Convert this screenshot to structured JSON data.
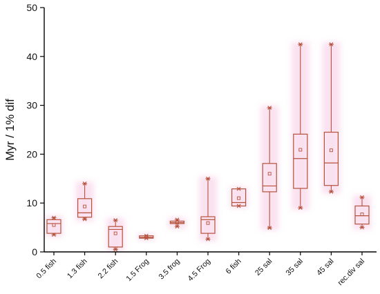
{
  "chart_data": {
    "type": "box",
    "title": "",
    "xlabel": "",
    "ylabel": "Myr / 1% dif",
    "ylim": [
      0,
      50
    ],
    "yticks": [
      0,
      10,
      20,
      30,
      40,
      50
    ],
    "box_color": "#b5513b",
    "glow_color": "#f7c9e3",
    "categories": [
      "0.5 fish",
      "1.3 fish",
      "2.2 fish",
      "1.5 Frog",
      "3.5 frog",
      "4.5 Frog",
      "6 fish",
      "25 sal",
      "35 sal",
      "45 sal",
      "rec.div sal"
    ],
    "boxes": [
      {
        "min": 3.5,
        "q1": 3.8,
        "median": 5.8,
        "q3": 6.6,
        "max": 7.0,
        "mean": 5.5
      },
      {
        "min": 6.7,
        "q1": 7.1,
        "median": 8.0,
        "q3": 10.9,
        "max": 14.0,
        "mean": 9.3
      },
      {
        "min": 0.5,
        "q1": 1.0,
        "median": 4.6,
        "q3": 5.2,
        "max": 6.5,
        "mean": 3.8
      },
      {
        "min": 2.8,
        "q1": 2.8,
        "median": 3.0,
        "q3": 3.3,
        "max": 3.3,
        "mean": 3.1
      },
      {
        "min": 5.2,
        "q1": 5.8,
        "median": 6.0,
        "q3": 6.3,
        "max": 6.6,
        "mean": 6.0
      },
      {
        "min": 2.6,
        "q1": 3.8,
        "median": 6.6,
        "q3": 7.2,
        "max": 15.0,
        "mean": 5.9
      },
      {
        "min": 9.4,
        "q1": 9.4,
        "median": 10.1,
        "q3": 12.9,
        "max": 12.9,
        "mean": 11.0
      },
      {
        "min": 4.9,
        "q1": 12.3,
        "median": 13.5,
        "q3": 18.1,
        "max": 29.5,
        "mean": 16.0
      },
      {
        "min": 9.0,
        "q1": 13.0,
        "median": 19.1,
        "q3": 24.1,
        "max": 42.5,
        "mean": 20.9
      },
      {
        "min": 12.3,
        "q1": 13.6,
        "median": 18.2,
        "q3": 24.5,
        "max": 42.5,
        "mean": 20.8
      },
      {
        "min": 5.0,
        "q1": 5.7,
        "median": 7.4,
        "q3": 9.4,
        "max": 11.2,
        "mean": 7.7
      }
    ]
  }
}
